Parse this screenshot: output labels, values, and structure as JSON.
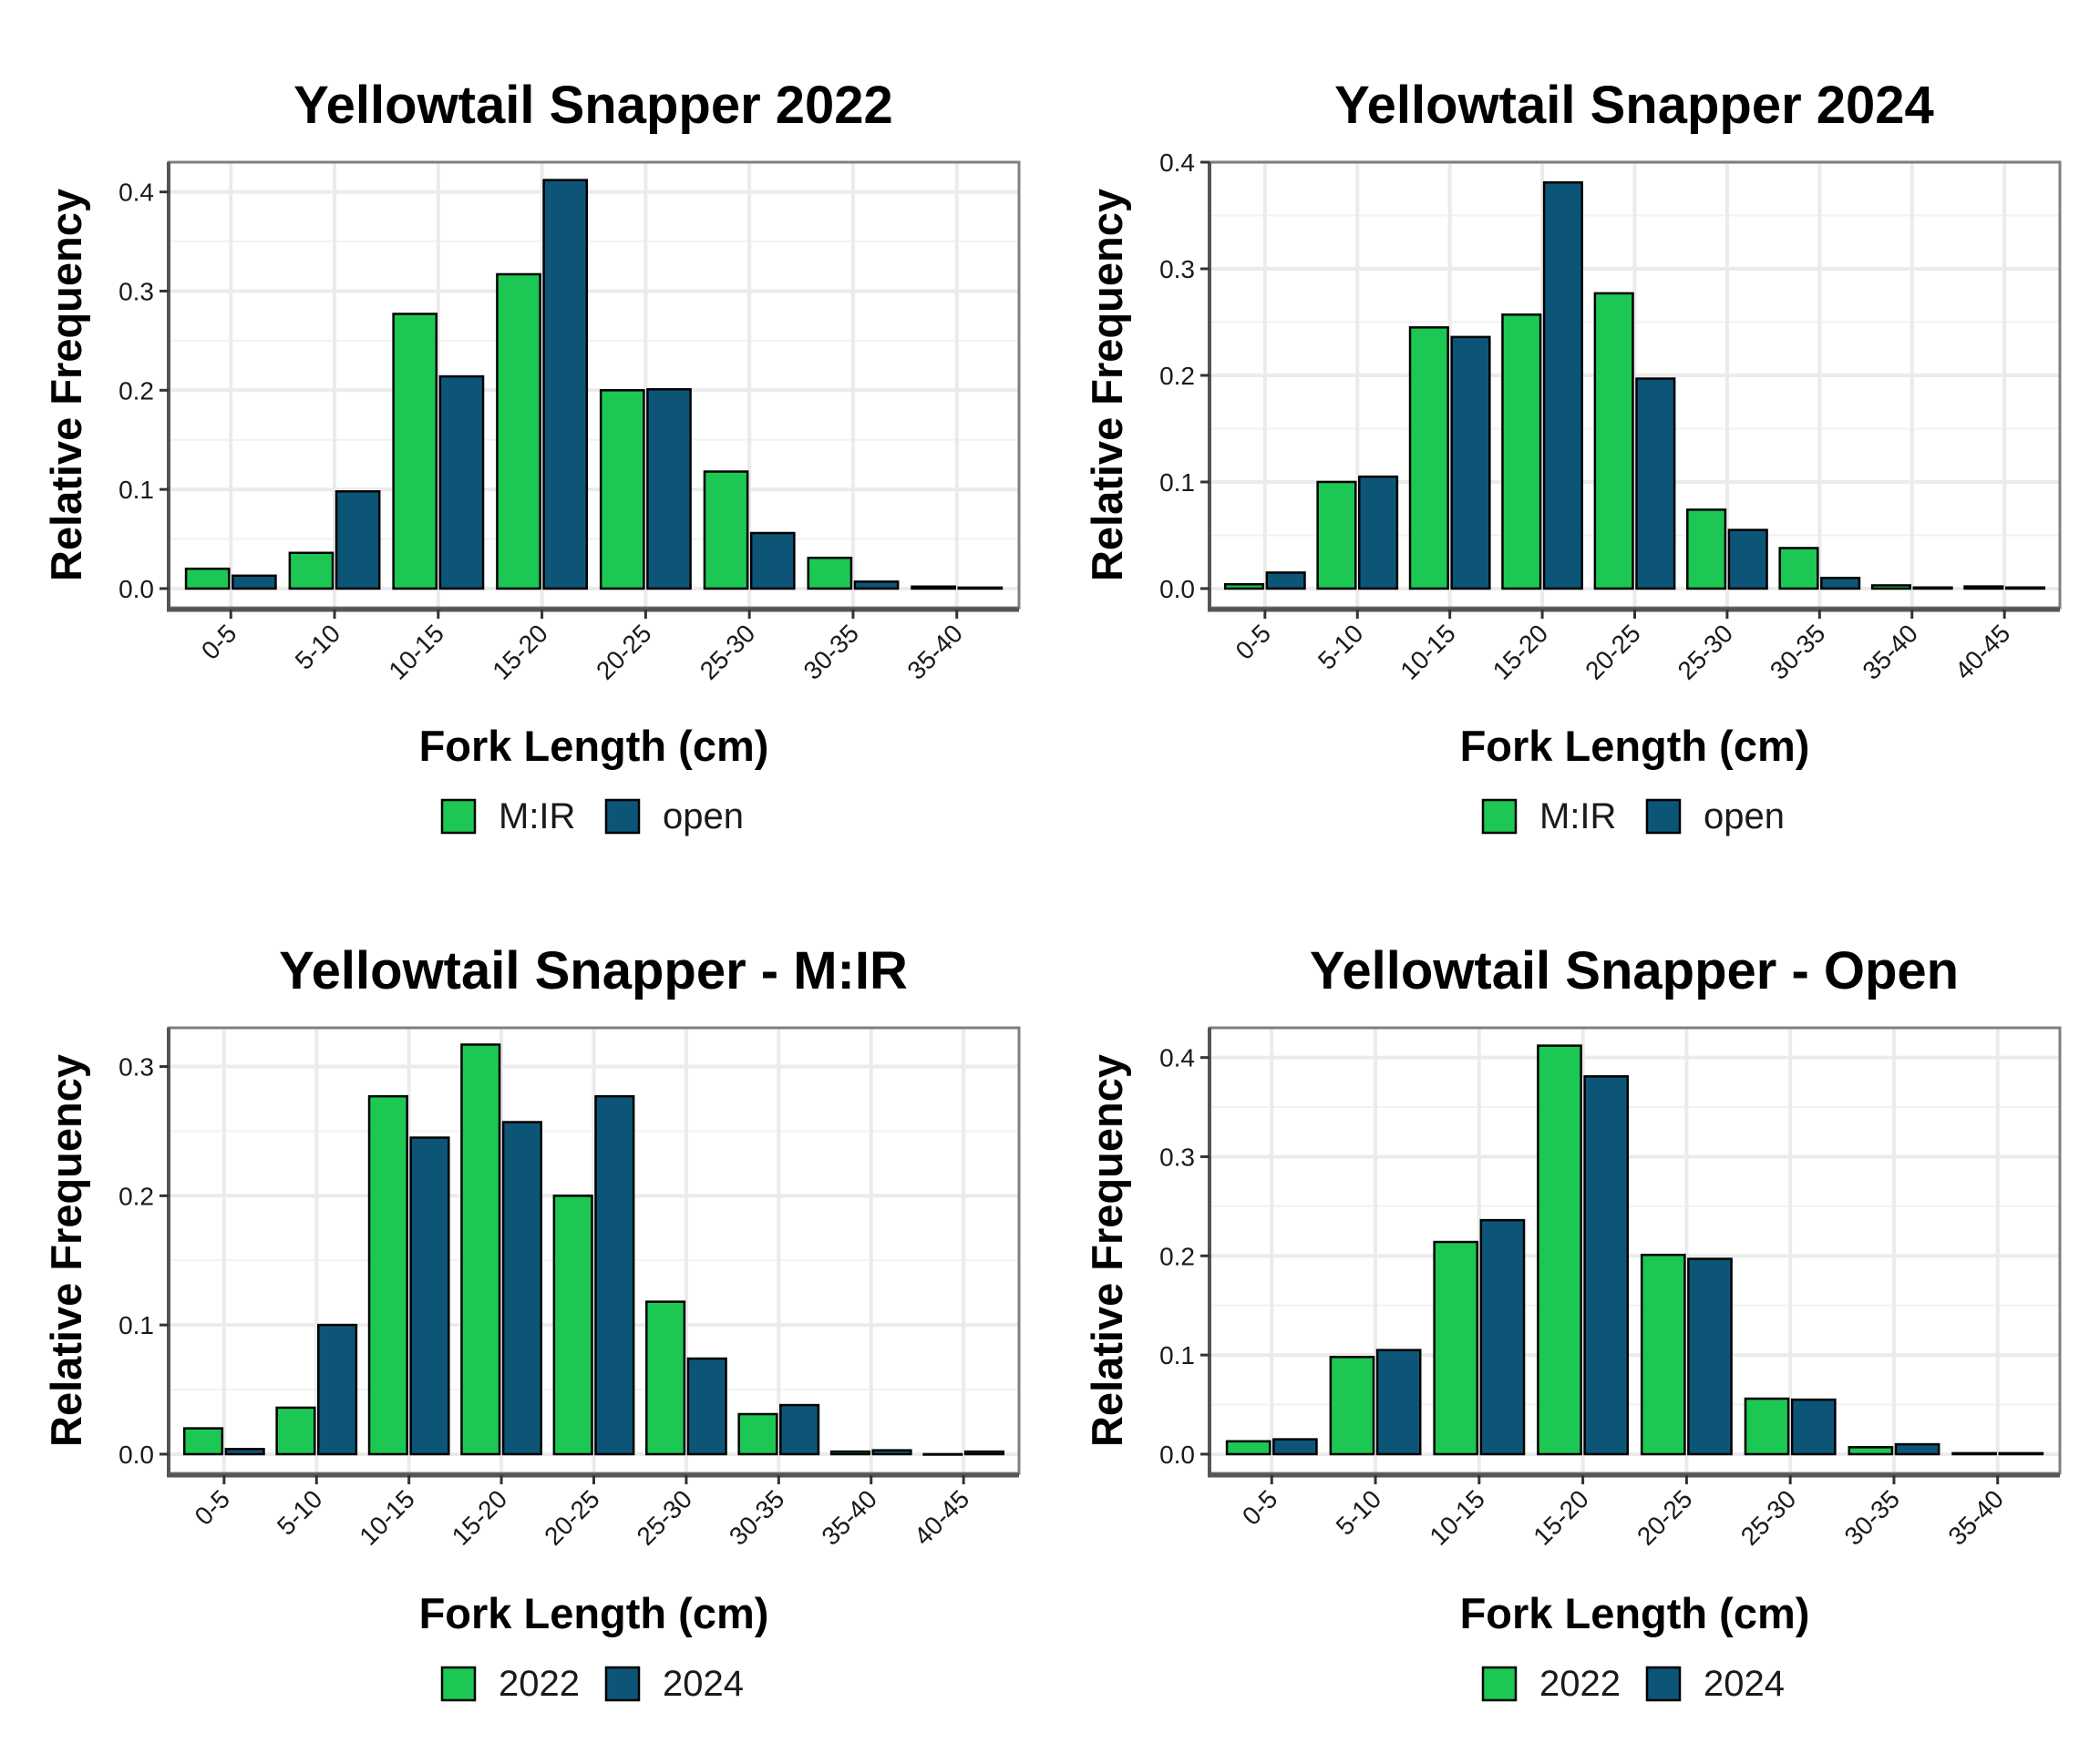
{
  "colors": {
    "green": "#1dc753",
    "blue": "#0d5577",
    "border": "#000000",
    "grid_major": "#ebebeb",
    "grid_minor": "#f2f2f2",
    "panel_border": "#7f7f7f"
  },
  "chart_data": [
    {
      "type": "bar",
      "title": "Yellowtail Snapper 2022",
      "xlabel": "Fork Length (cm)",
      "ylabel": "Relative Frequency",
      "categories": [
        "0-5",
        "5-10",
        "10-15",
        "15-20",
        "20-25",
        "25-30",
        "30-35",
        "35-40"
      ],
      "ylim": [
        0,
        0.43
      ],
      "yticks": [
        "0.0",
        "0.1",
        "0.2",
        "0.3",
        "0.4"
      ],
      "series": [
        {
          "name": "M:IR",
          "color": "#1dc753",
          "values": [
            0.02,
            0.036,
            0.277,
            0.317,
            0.2,
            0.118,
            0.031,
            0.002
          ]
        },
        {
          "name": "open",
          "color": "#0d5577",
          "values": [
            0.013,
            0.098,
            0.214,
            0.412,
            0.201,
            0.056,
            0.007,
            0.001
          ]
        }
      ]
    },
    {
      "type": "bar",
      "title": "Yellowtail Snapper 2024",
      "xlabel": "Fork Length (cm)",
      "ylabel": "Relative Frequency",
      "categories": [
        "0-5",
        "5-10",
        "10-15",
        "15-20",
        "20-25",
        "25-30",
        "30-35",
        "35-40",
        "40-45"
      ],
      "ylim": [
        0,
        0.4
      ],
      "yticks": [
        "0.0",
        "0.1",
        "0.2",
        "0.3",
        "0.4"
      ],
      "series": [
        {
          "name": "M:IR",
          "color": "#1dc753",
          "values": [
            0.004,
            0.1,
            0.245,
            0.257,
            0.277,
            0.074,
            0.038,
            0.003,
            0.002
          ]
        },
        {
          "name": "open",
          "color": "#0d5577",
          "values": [
            0.015,
            0.105,
            0.236,
            0.381,
            0.197,
            0.055,
            0.01,
            0.001,
            0.001
          ]
        }
      ]
    },
    {
      "type": "bar",
      "title": "Yellowtail Snapper - M:IR",
      "xlabel": "Fork Length (cm)",
      "ylabel": "Relative Frequency",
      "categories": [
        "0-5",
        "5-10",
        "10-15",
        "15-20",
        "20-25",
        "25-30",
        "30-35",
        "35-40",
        "40-45"
      ],
      "ylim": [
        0,
        0.33
      ],
      "yticks": [
        "0.0",
        "0.1",
        "0.2",
        "0.3"
      ],
      "series": [
        {
          "name": "2022",
          "color": "#1dc753",
          "values": [
            0.02,
            0.036,
            0.277,
            0.317,
            0.2,
            0.118,
            0.031,
            0.002,
            0.0
          ]
        },
        {
          "name": "2024",
          "color": "#0d5577",
          "values": [
            0.004,
            0.1,
            0.245,
            0.257,
            0.277,
            0.074,
            0.038,
            0.003,
            0.002
          ]
        }
      ]
    },
    {
      "type": "bar",
      "title": "Yellowtail Snapper - Open",
      "xlabel": "Fork Length (cm)",
      "ylabel": "Relative Frequency",
      "categories": [
        "0-5",
        "5-10",
        "10-15",
        "15-20",
        "20-25",
        "25-30",
        "30-35",
        "35-40"
      ],
      "ylim": [
        0,
        0.43
      ],
      "yticks": [
        "0.0",
        "0.1",
        "0.2",
        "0.3",
        "0.4"
      ],
      "series": [
        {
          "name": "2022",
          "color": "#1dc753",
          "values": [
            0.013,
            0.098,
            0.214,
            0.412,
            0.201,
            0.056,
            0.007,
            0.001
          ]
        },
        {
          "name": "2024",
          "color": "#0d5577",
          "values": [
            0.015,
            0.105,
            0.236,
            0.381,
            0.197,
            0.055,
            0.01,
            0.001
          ]
        }
      ]
    }
  ]
}
